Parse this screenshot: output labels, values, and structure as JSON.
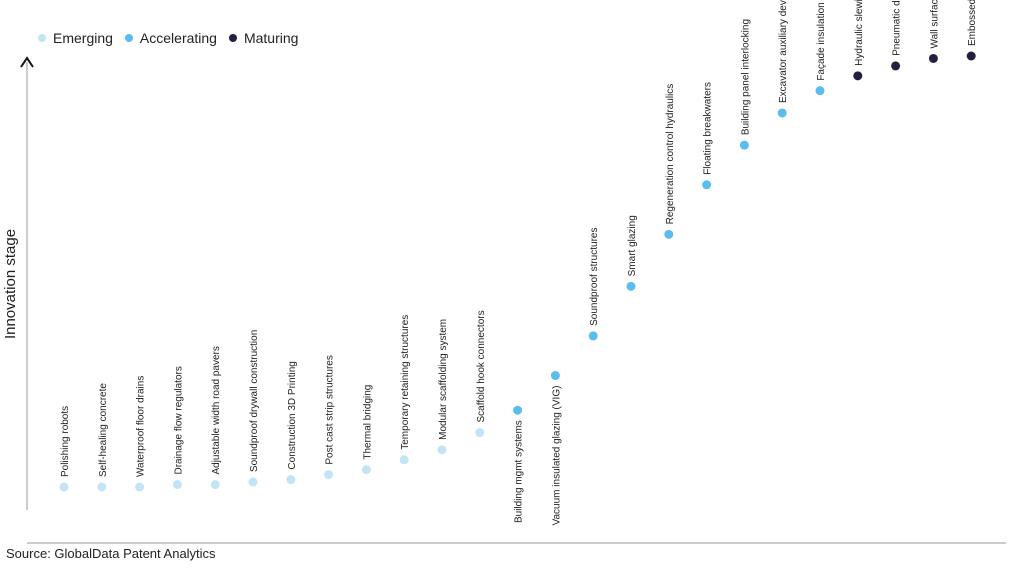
{
  "chart_data": {
    "type": "scatter",
    "ylabel": "Innovation stage",
    "source": "Source: GlobalData Patent Analytics",
    "legend_position": "top-left",
    "stages": [
      {
        "name": "Emerging",
        "color": "#c2e5f5"
      },
      {
        "name": "Accelerating",
        "color": "#5bbcee"
      },
      {
        "name": "Maturing",
        "color": "#21213f"
      }
    ],
    "points": [
      {
        "label": "Polishing robots",
        "stage": "Emerging",
        "value": 0.13
      },
      {
        "label": "Self-healing concrete",
        "stage": "Emerging",
        "value": 0.13
      },
      {
        "label": "Waterproof floor drains",
        "stage": "Emerging",
        "value": 0.13
      },
      {
        "label": "Drainage flow regulators",
        "stage": "Emerging",
        "value": 0.135
      },
      {
        "label": "Adjustable width road pavers",
        "stage": "Emerging",
        "value": 0.135
      },
      {
        "label": "Soundproof drywall construction",
        "stage": "Emerging",
        "value": 0.14
      },
      {
        "label": "Construction 3D Printing",
        "stage": "Emerging",
        "value": 0.145
      },
      {
        "label": "Post cast strip structures",
        "stage": "Emerging",
        "value": 0.155
      },
      {
        "label": "Thermal bridging",
        "stage": "Emerging",
        "value": 0.165
      },
      {
        "label": "Temporary retaining structures",
        "stage": "Emerging",
        "value": 0.185
      },
      {
        "label": "Modular scaffolding system",
        "stage": "Emerging",
        "value": 0.205
      },
      {
        "label": "Scaffold hook connectors",
        "stage": "Emerging",
        "value": 0.24
      },
      {
        "label": "Building mgmt systems",
        "stage": "Accelerating",
        "value": 0.285
      },
      {
        "label": "Vacuum insulated glazing (VIG)",
        "stage": "Accelerating",
        "value": 0.355
      },
      {
        "label": "Soundproof structures",
        "stage": "Accelerating",
        "value": 0.435
      },
      {
        "label": "Smart glazing",
        "stage": "Accelerating",
        "value": 0.535
      },
      {
        "label": "Regeneration control hydraulics",
        "stage": "Accelerating",
        "value": 0.64
      },
      {
        "label": "Floating breakwaters",
        "stage": "Accelerating",
        "value": 0.74
      },
      {
        "label": "Building panel interlocking",
        "stage": "Accelerating",
        "value": 0.82
      },
      {
        "label": "Excavator auxiliary devices",
        "stage": "Accelerating",
        "value": 0.885
      },
      {
        "label": "Façade insulation",
        "stage": "Accelerating",
        "value": 0.93
      },
      {
        "label": "Hydraulic slewing drive",
        "stage": "Maturing",
        "value": 0.96
      },
      {
        "label": "Pneumatic door closers",
        "stage": "Maturing",
        "value": 0.98
      },
      {
        "label": "Wall surface temperature controls",
        "stage": "Maturing",
        "value": 0.995
      },
      {
        "label": "Embossed floor panels",
        "stage": "Maturing",
        "value": 1.0
      }
    ]
  }
}
